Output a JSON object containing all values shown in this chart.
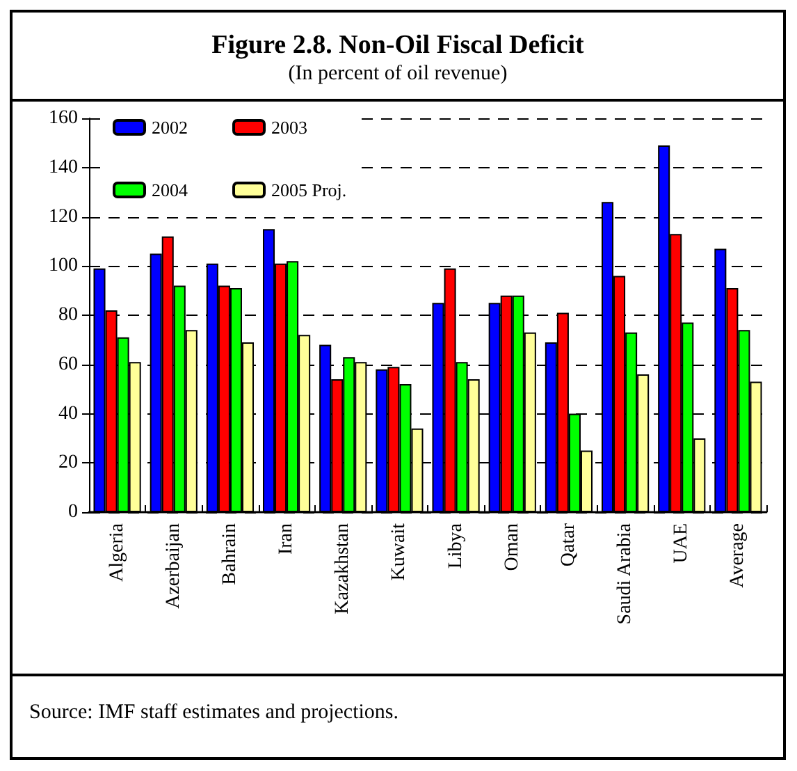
{
  "chart_data": {
    "type": "bar",
    "title": "Figure 2.8.  Non-Oil Fiscal Deficit",
    "subtitle": "(In percent of oil revenue)",
    "categories": [
      "Algeria",
      "Azerbaijan",
      "Bahrain",
      "Iran",
      "Kazakhstan",
      "Kuwait",
      "Libya",
      "Oman",
      "Qatar",
      "Saudi Arabia",
      "UAE",
      "Average"
    ],
    "series": [
      {
        "name": "2002",
        "color": "#0000ff",
        "values": [
          99,
          105,
          101,
          115,
          68,
          58,
          85,
          85,
          69,
          126,
          149,
          107
        ]
      },
      {
        "name": "2003",
        "color": "#ff0000",
        "values": [
          82,
          112,
          92,
          101,
          54,
          59,
          99,
          88,
          81,
          96,
          113,
          91
        ]
      },
      {
        "name": "2004",
        "color": "#00ff00",
        "values": [
          71,
          92,
          91,
          102,
          63,
          52,
          61,
          88,
          40,
          73,
          77,
          74
        ]
      },
      {
        "name": "2005 Proj.",
        "color": "#ffff99",
        "values": [
          61,
          74,
          69,
          72,
          61,
          34,
          54,
          73,
          25,
          56,
          30,
          53
        ]
      }
    ],
    "ylim": [
      0,
      160
    ],
    "yticks": [
      0,
      20,
      40,
      60,
      80,
      100,
      120,
      140,
      160
    ],
    "grid": "y",
    "legend": "top left",
    "annotations": [
      "Source: IMF staff estimates and projections."
    ]
  }
}
